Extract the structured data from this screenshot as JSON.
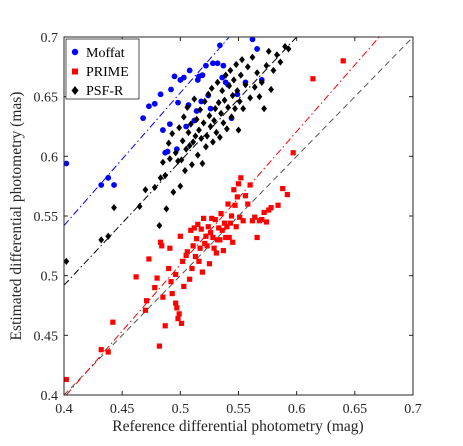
{
  "chart_data": {
    "type": "scatter",
    "xlabel": "Reference differential photometry (mag)",
    "ylabel": "Estimated differential photometry (mas)",
    "xlim": [
      0.4,
      0.7
    ],
    "ylim": [
      0.4,
      0.7
    ],
    "xticks": [
      "0.4",
      "0.45",
      "0.5",
      "0.55",
      "0.6",
      "0.65",
      "0.7"
    ],
    "yticks": [
      "0.4",
      "0.45",
      "0.5",
      "0.55",
      "0.6",
      "0.65",
      "0.7"
    ],
    "grid": false,
    "legend_position": "top-left",
    "series": [
      {
        "name": "Moffat",
        "color": "#0000ff",
        "marker": "circle",
        "points": [
          [
            0.402,
            0.594
          ],
          [
            0.432,
            0.576
          ],
          [
            0.438,
            0.582
          ],
          [
            0.443,
            0.576
          ],
          [
            0.468,
            0.632
          ],
          [
            0.473,
            0.642
          ],
          [
            0.478,
            0.644
          ],
          [
            0.483,
            0.652
          ],
          [
            0.485,
            0.622
          ],
          [
            0.487,
            0.603
          ],
          [
            0.489,
            0.604
          ],
          [
            0.491,
            0.627
          ],
          [
            0.492,
            0.656
          ],
          [
            0.495,
            0.667
          ],
          [
            0.497,
            0.606
          ],
          [
            0.498,
            0.645
          ],
          [
            0.5,
            0.664
          ],
          [
            0.503,
            0.666
          ],
          [
            0.505,
            0.625
          ],
          [
            0.507,
            0.643
          ],
          [
            0.508,
            0.672
          ],
          [
            0.512,
            0.63
          ],
          [
            0.514,
            0.638
          ],
          [
            0.515,
            0.664
          ],
          [
            0.516,
            0.667
          ],
          [
            0.518,
            0.646
          ],
          [
            0.519,
            0.668
          ],
          [
            0.522,
            0.676
          ],
          [
            0.524,
            0.651
          ],
          [
            0.526,
            0.64
          ],
          [
            0.528,
            0.678
          ],
          [
            0.532,
            0.678
          ],
          [
            0.534,
            0.693
          ],
          [
            0.536,
            0.666
          ],
          [
            0.537,
            0.676
          ],
          [
            0.539,
            0.662
          ],
          [
            0.541,
            0.66
          ],
          [
            0.544,
            0.632
          ],
          [
            0.549,
            0.652
          ],
          [
            0.556,
            0.662
          ],
          [
            0.562,
            0.698
          ],
          [
            0.566,
            0.69
          ],
          [
            0.57,
            0.664
          ]
        ],
        "fit_line": [
          [
            0.4,
            0.542
          ],
          [
            0.542,
            0.7
          ]
        ],
        "fit_style": "dash-dot"
      },
      {
        "name": "PRIME",
        "color": "#ff0000",
        "marker": "square",
        "points": [
          [
            0.402,
            0.413
          ],
          [
            0.432,
            0.438
          ],
          [
            0.438,
            0.436
          ],
          [
            0.442,
            0.461
          ],
          [
            0.462,
            0.499
          ],
          [
            0.47,
            0.471
          ],
          [
            0.471,
            0.479
          ],
          [
            0.473,
            0.514
          ],
          [
            0.478,
            0.49
          ],
          [
            0.48,
            0.498
          ],
          [
            0.482,
            0.441
          ],
          [
            0.483,
            0.528
          ],
          [
            0.484,
            0.525
          ],
          [
            0.485,
            0.482
          ],
          [
            0.487,
            0.458
          ],
          [
            0.49,
            0.506
          ],
          [
            0.491,
            0.523
          ],
          [
            0.492,
            0.495
          ],
          [
            0.493,
            0.485
          ],
          [
            0.496,
            0.501
          ],
          [
            0.496,
            0.477
          ],
          [
            0.497,
            0.473
          ],
          [
            0.498,
            0.464
          ],
          [
            0.499,
            0.468
          ],
          [
            0.5,
            0.533
          ],
          [
            0.501,
            0.46
          ],
          [
            0.502,
            0.512
          ],
          [
            0.503,
            0.491
          ],
          [
            0.505,
            0.517
          ],
          [
            0.506,
            0.52
          ],
          [
            0.508,
            0.497
          ],
          [
            0.509,
            0.538
          ],
          [
            0.51,
            0.506
          ],
          [
            0.511,
            0.525
          ],
          [
            0.512,
            0.54
          ],
          [
            0.513,
            0.516
          ],
          [
            0.514,
            0.531
          ],
          [
            0.515,
            0.543
          ],
          [
            0.516,
            0.512
          ],
          [
            0.517,
            0.523
          ],
          [
            0.518,
            0.539
          ],
          [
            0.519,
            0.503
          ],
          [
            0.52,
            0.548
          ],
          [
            0.521,
            0.527
          ],
          [
            0.522,
            0.533
          ],
          [
            0.523,
            0.525
          ],
          [
            0.524,
            0.541
          ],
          [
            0.525,
            0.51
          ],
          [
            0.526,
            0.536
          ],
          [
            0.527,
            0.548
          ],
          [
            0.528,
            0.532
          ],
          [
            0.529,
            0.523
          ],
          [
            0.53,
            0.547
          ],
          [
            0.531,
            0.519
          ],
          [
            0.532,
            0.53
          ],
          [
            0.533,
            0.54
          ],
          [
            0.534,
            0.53
          ],
          [
            0.535,
            0.552
          ],
          [
            0.536,
            0.538
          ],
          [
            0.537,
            0.521
          ],
          [
            0.538,
            0.544
          ],
          [
            0.539,
            0.532
          ],
          [
            0.54,
            0.541
          ],
          [
            0.541,
            0.56
          ],
          [
            0.542,
            0.532
          ],
          [
            0.543,
            0.544
          ],
          [
            0.544,
            0.55
          ],
          [
            0.545,
            0.528
          ],
          [
            0.546,
            0.572
          ],
          [
            0.547,
            0.559
          ],
          [
            0.548,
            0.541
          ],
          [
            0.549,
            0.566
          ],
          [
            0.55,
            0.577
          ],
          [
            0.551,
            0.549
          ],
          [
            0.552,
            0.582
          ],
          [
            0.554,
            0.546
          ],
          [
            0.556,
            0.567
          ],
          [
            0.558,
            0.56
          ],
          [
            0.56,
            0.576
          ],
          [
            0.562,
            0.546
          ],
          [
            0.564,
            0.549
          ],
          [
            0.566,
            0.532
          ],
          [
            0.568,
            0.546
          ],
          [
            0.57,
            0.547
          ],
          [
            0.572,
            0.553
          ],
          [
            0.574,
            0.545
          ],
          [
            0.576,
            0.555
          ],
          [
            0.578,
            0.557
          ],
          [
            0.584,
            0.559
          ],
          [
            0.588,
            0.573
          ],
          [
            0.592,
            0.568
          ],
          [
            0.597,
            0.603
          ],
          [
            0.614,
            0.665
          ],
          [
            0.64,
            0.68
          ]
        ],
        "fit_line": [
          [
            0.402,
            0.4
          ],
          [
            0.671,
            0.7
          ]
        ],
        "fit_style": "dash-dot"
      },
      {
        "name": "PSF-R",
        "color": "#000000",
        "marker": "diamond",
        "points": [
          [
            0.402,
            0.512
          ],
          [
            0.432,
            0.53
          ],
          [
            0.438,
            0.533
          ],
          [
            0.443,
            0.557
          ],
          [
            0.465,
            0.558
          ],
          [
            0.47,
            0.572
          ],
          [
            0.478,
            0.574
          ],
          [
            0.482,
            0.542
          ],
          [
            0.483,
            0.582
          ],
          [
            0.485,
            0.595
          ],
          [
            0.487,
            0.584
          ],
          [
            0.488,
            0.556
          ],
          [
            0.49,
            0.611
          ],
          [
            0.491,
            0.598
          ],
          [
            0.493,
            0.619
          ],
          [
            0.494,
            0.57
          ],
          [
            0.496,
            0.603
          ],
          [
            0.498,
            0.596
          ],
          [
            0.499,
            0.624
          ],
          [
            0.5,
            0.575
          ],
          [
            0.501,
            0.597
          ],
          [
            0.502,
            0.613
          ],
          [
            0.503,
            0.633
          ],
          [
            0.504,
            0.588
          ],
          [
            0.505,
            0.606
          ],
          [
            0.506,
            0.641
          ],
          [
            0.507,
            0.62
          ],
          [
            0.508,
            0.609
          ],
          [
            0.509,
            0.627
          ],
          [
            0.51,
            0.593
          ],
          [
            0.511,
            0.612
          ],
          [
            0.512,
            0.648
          ],
          [
            0.513,
            0.617
          ],
          [
            0.514,
            0.631
          ],
          [
            0.515,
            0.601
          ],
          [
            0.516,
            0.622
          ],
          [
            0.517,
            0.639
          ],
          [
            0.518,
            0.615
          ],
          [
            0.519,
            0.594
          ],
          [
            0.52,
            0.628
          ],
          [
            0.521,
            0.646
          ],
          [
            0.522,
            0.608
          ],
          [
            0.523,
            0.617
          ],
          [
            0.524,
            0.652
          ],
          [
            0.525,
            0.634
          ],
          [
            0.526,
            0.625
          ],
          [
            0.527,
            0.657
          ],
          [
            0.528,
            0.612
          ],
          [
            0.529,
            0.63
          ],
          [
            0.53,
            0.64
          ],
          [
            0.531,
            0.62
          ],
          [
            0.532,
            0.662
          ],
          [
            0.533,
            0.645
          ],
          [
            0.534,
            0.616
          ],
          [
            0.535,
            0.636
          ],
          [
            0.536,
            0.655
          ],
          [
            0.537,
            0.628
          ],
          [
            0.538,
            0.647
          ],
          [
            0.539,
            0.668
          ],
          [
            0.54,
            0.623
          ],
          [
            0.541,
            0.641
          ],
          [
            0.542,
            0.659
          ],
          [
            0.543,
            0.672
          ],
          [
            0.544,
            0.633
          ],
          [
            0.545,
            0.651
          ],
          [
            0.546,
            0.664
          ],
          [
            0.547,
            0.64
          ],
          [
            0.548,
            0.677
          ],
          [
            0.549,
            0.655
          ],
          [
            0.55,
            0.622
          ],
          [
            0.551,
            0.646
          ],
          [
            0.552,
            0.668
          ],
          [
            0.553,
            0.681
          ],
          [
            0.554,
            0.64
          ],
          [
            0.556,
            0.66
          ],
          [
            0.558,
            0.675
          ],
          [
            0.56,
            0.649
          ],
          [
            0.562,
            0.683
          ],
          [
            0.564,
            0.658
          ],
          [
            0.566,
            0.67
          ],
          [
            0.568,
            0.65
          ],
          [
            0.57,
            0.662
          ],
          [
            0.572,
            0.64
          ],
          [
            0.574,
            0.676
          ],
          [
            0.576,
            0.688
          ],
          [
            0.578,
            0.656
          ],
          [
            0.58,
            0.672
          ],
          [
            0.583,
            0.685
          ],
          [
            0.586,
            0.679
          ],
          [
            0.59,
            0.692
          ],
          [
            0.593,
            0.69
          ]
        ],
        "fit_line": [
          [
            0.4,
            0.492
          ],
          [
            0.6,
            0.7
          ]
        ],
        "fit_style": "dash-dot"
      }
    ],
    "reference_line": {
      "points": [
        [
          0.4,
          0.4
        ],
        [
          0.7,
          0.7
        ]
      ],
      "color": "#555555",
      "style": "dashed"
    }
  }
}
